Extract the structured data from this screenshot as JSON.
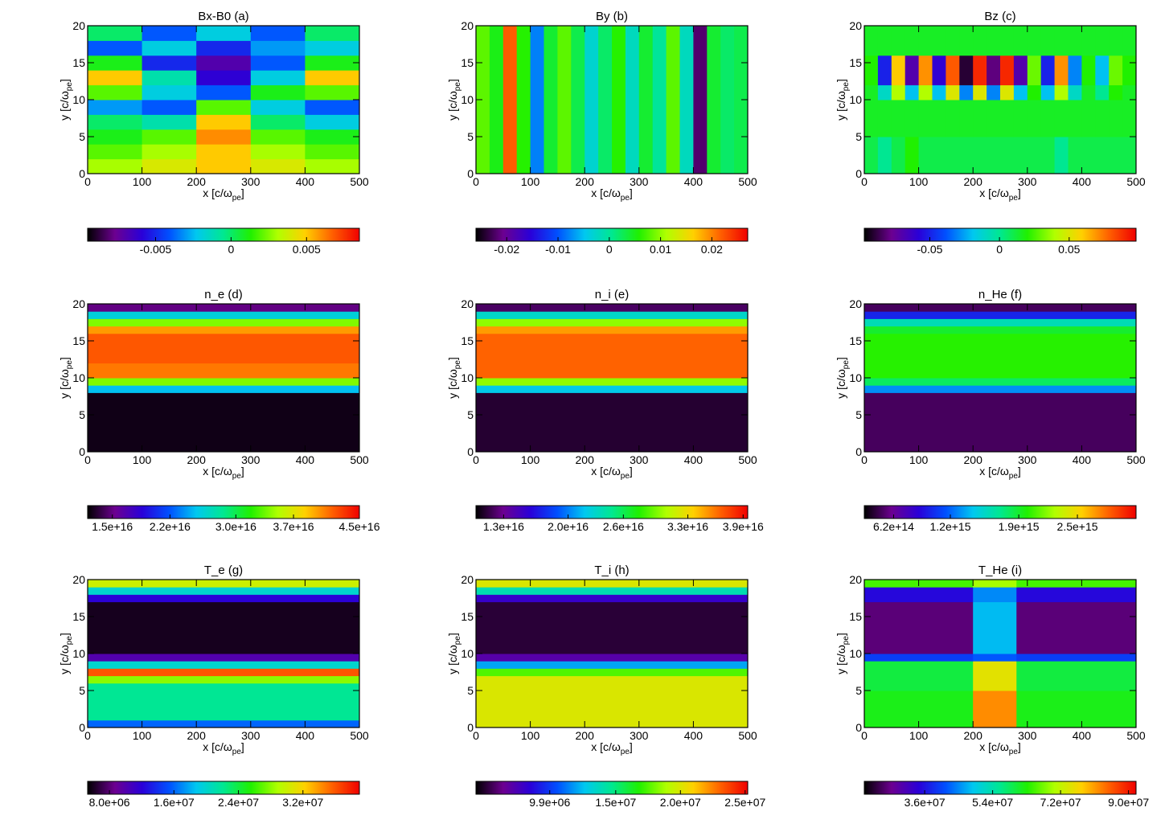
{
  "colormap": [
    "#000000",
    "#6c0090",
    "#2a00d8",
    "#0050ff",
    "#00c8f0",
    "#00e890",
    "#20f000",
    "#b0ff00",
    "#ffd000",
    "#ff6000",
    "#f00000"
  ],
  "chart_data": [
    {
      "type": "heatmap",
      "title": "Bx-B0 (a)",
      "x_label": [
        "x [c/ω",
        "pe",
        "]"
      ],
      "y_label": [
        "y [c/ω",
        "pe",
        "]"
      ],
      "xlim": [
        0,
        500
      ],
      "ylim": [
        0,
        20
      ],
      "xticks": [
        0,
        100,
        200,
        300,
        400,
        500
      ],
      "yticks": [
        0,
        5,
        10,
        15,
        20
      ],
      "x_edges": [
        0,
        100,
        200,
        300,
        400,
        500
      ],
      "y_edges": [
        0,
        2,
        4,
        6,
        8,
        10,
        12,
        14,
        16,
        18,
        20
      ],
      "z": [
        [
          0.003,
          0.004,
          0.005,
          0.004,
          0.003
        ],
        [
          0.002,
          0.003,
          0.005,
          0.003,
          0.002
        ],
        [
          0.001,
          0.002,
          0.006,
          0.002,
          0.001
        ],
        [
          0,
          -0.001,
          0.005,
          0,
          -0.002
        ],
        [
          -0.003,
          -0.004,
          0.002,
          -0.002,
          -0.004
        ],
        [
          0.002,
          -0.002,
          -0.004,
          0.001,
          0.002
        ],
        [
          0.005,
          -0.001,
          -0.006,
          -0.002,
          0.005
        ],
        [
          0.001,
          -0.005,
          -0.007,
          -0.004,
          0.001
        ],
        [
          -0.004,
          -0.002,
          -0.005,
          -0.003,
          -0.002
        ],
        [
          0,
          -0.004,
          -0.002,
          -0.004,
          0
        ]
      ],
      "clim": [
        -0.0095,
        0.0085
      ],
      "cticks": [
        -0.005,
        0,
        0.005
      ]
    },
    {
      "type": "heatmap",
      "title": "By (b)",
      "x_label": [
        "x [c/ω",
        "pe",
        "]"
      ],
      "y_label": [
        "y [c/ω",
        "pe",
        "]"
      ],
      "xlim": [
        0,
        500
      ],
      "ylim": [
        0,
        20
      ],
      "xticks": [
        0,
        100,
        200,
        300,
        400,
        500
      ],
      "yticks": [
        0,
        5,
        10,
        15,
        20
      ],
      "x_edges": [
        0,
        25,
        50,
        75,
        100,
        125,
        150,
        175,
        200,
        225,
        250,
        275,
        300,
        325,
        350,
        375,
        400,
        425,
        450,
        475,
        500
      ],
      "y_edges": [
        0,
        20
      ],
      "z": [
        [
          0.008,
          0.005,
          0.022,
          0.006,
          -0.008,
          0.004,
          0.008,
          0.003,
          -0.003,
          0.002,
          0.006,
          -0.002,
          0.004,
          0,
          0.008,
          -0.002,
          -0.022,
          0.004,
          0.002,
          0.003
        ]
      ],
      "clim": [
        -0.026,
        0.027
      ],
      "cticks": [
        -0.02,
        -0.01,
        0,
        0.01,
        0.02
      ]
    },
    {
      "type": "heatmap",
      "title": "Bz (c)",
      "x_label": [
        "x [c/ω",
        "pe",
        "]"
      ],
      "y_label": [
        "y [c/ω",
        "pe",
        "]"
      ],
      "xlim": [
        0,
        500
      ],
      "ylim": [
        0,
        20
      ],
      "xticks": [
        0,
        100,
        200,
        300,
        400,
        500
      ],
      "yticks": [
        0,
        5,
        10,
        15,
        20
      ],
      "x_edges": [
        0,
        25,
        50,
        75,
        100,
        125,
        150,
        175,
        200,
        225,
        250,
        275,
        300,
        325,
        350,
        375,
        400,
        425,
        450,
        475,
        500
      ],
      "y_edges": [
        0,
        5,
        10,
        12,
        16,
        20
      ],
      "z": [
        [
          0.01,
          0,
          0.01,
          0.02,
          0.01,
          0.01,
          0.01,
          0.01,
          0.01,
          0.01,
          0.01,
          0.01,
          0.01,
          0.01,
          0,
          0.01,
          0.01,
          0.01,
          0.01,
          0.01
        ],
        [
          0.015,
          0.015,
          0.015,
          0.015,
          0.015,
          0.015,
          0.015,
          0.015,
          0.015,
          0.015,
          0.015,
          0.015,
          0.015,
          0.015,
          0.015,
          0.015,
          0.015,
          0.015,
          0.015,
          0.015
        ],
        [
          0.015,
          -0.01,
          0.04,
          -0.02,
          0.04,
          -0.02,
          0.05,
          -0.03,
          0.05,
          -0.03,
          0.05,
          -0.02,
          0.02,
          -0.02,
          0.04,
          -0.01,
          0.015,
          0,
          0.02,
          0.015
        ],
        [
          0.02,
          -0.05,
          0.06,
          -0.07,
          0.07,
          -0.06,
          0.08,
          -0.09,
          0.09,
          -0.08,
          0.09,
          -0.07,
          0.03,
          -0.05,
          0.07,
          -0.03,
          0.02,
          -0.02,
          0.03,
          0.02
        ],
        [
          0.015,
          0.015,
          0.015,
          0.015,
          0.015,
          0.015,
          0.015,
          0.015,
          0.015,
          0.015,
          0.015,
          0.015,
          0.015,
          0.015,
          0.015,
          0.015,
          0.015,
          0.015,
          0.015,
          0.015
        ]
      ],
      "clim": [
        -0.097,
        0.098
      ],
      "cticks": [
        -0.05,
        0,
        0.05
      ]
    },
    {
      "type": "heatmap",
      "title": "n_e (d)",
      "x_label": [
        "x [c/ω",
        "pe",
        "]"
      ],
      "y_label": [
        "y [c/ω",
        "pe",
        "]"
      ],
      "xlim": [
        0,
        500
      ],
      "ylim": [
        0,
        20
      ],
      "xticks": [
        0,
        100,
        200,
        300,
        400,
        500
      ],
      "yticks": [
        0,
        5,
        10,
        15,
        20
      ],
      "x_edges": [
        0,
        500
      ],
      "y_edges": [
        0,
        8,
        9,
        10,
        12,
        16,
        17,
        18,
        19,
        20
      ],
      "z": [
        [
          1.25e+16
        ],
        [
          2.5e+16
        ],
        [
          3.4e+16
        ],
        [
          4.1e+16
        ],
        [
          4.2e+16
        ],
        [
          4e+16
        ],
        [
          3.4e+16
        ],
        [
          2.6e+16
        ],
        [
          1.5e+16
        ]
      ],
      "clim": [
        1.2e+16,
        4.5e+16
      ],
      "cticks": [
        {
          "value": 1.5e+16,
          "label": "1.5e+16"
        },
        {
          "value": 2.2e+16,
          "label": "2.2e+16"
        },
        {
          "value": 3e+16,
          "label": "3.0e+16"
        },
        {
          "value": 3.7e+16,
          "label": "3.7e+16"
        },
        {
          "value": 4.5e+16,
          "label": "4.5e+16"
        }
      ]
    },
    {
      "type": "heatmap",
      "title": "n_i (e)",
      "x_label": [
        "x [c/ω",
        "pe",
        "]"
      ],
      "y_label": [
        "y [c/ω",
        "pe",
        "]"
      ],
      "xlim": [
        0,
        500
      ],
      "ylim": [
        0,
        20
      ],
      "xticks": [
        0,
        100,
        200,
        300,
        400,
        500
      ],
      "yticks": [
        0,
        5,
        10,
        15,
        20
      ],
      "x_edges": [
        0,
        500
      ],
      "y_edges": [
        0,
        8,
        9,
        10,
        16,
        17,
        18,
        19,
        20
      ],
      "z": [
        [
          1.1e+16
        ],
        [
          2.2e+16
        ],
        [
          3e+16
        ],
        [
          3.65e+16
        ],
        [
          3.5e+16
        ],
        [
          3e+16
        ],
        [
          2.3e+16
        ],
        [
          1.2e+16
        ]
      ],
      "clim": [
        1e+16,
        3.95e+16
      ],
      "cticks": [
        {
          "value": 1.3e+16,
          "label": "1.3e+16"
        },
        {
          "value": 2e+16,
          "label": "2.0e+16"
        },
        {
          "value": 2.6e+16,
          "label": "2.6e+16"
        },
        {
          "value": 3.3e+16,
          "label": "3.3e+16"
        },
        {
          "value": 3.9e+16,
          "label": "3.9e+16"
        }
      ]
    },
    {
      "type": "heatmap",
      "title": "n_He (f)",
      "x_label": [
        "x [c/ω",
        "pe",
        "]"
      ],
      "y_label": [
        "y [c/ω",
        "pe",
        "]"
      ],
      "xlim": [
        0,
        500
      ],
      "ylim": [
        0,
        20
      ],
      "xticks": [
        0,
        100,
        200,
        300,
        400,
        500
      ],
      "yticks": [
        0,
        5,
        10,
        15,
        20
      ],
      "x_edges": [
        0,
        500
      ],
      "y_edges": [
        0,
        8,
        9,
        10,
        16,
        17,
        18,
        19,
        20
      ],
      "z": [
        [
          500000000000000.0
        ],
        [
          1300000000000000.0
        ],
        [
          1800000000000000.0
        ],
        [
          2000000000000000.0
        ],
        [
          1900000000000000.0
        ],
        [
          1600000000000000.0
        ],
        [
          1000000000000000.0
        ],
        [
          500000000000000.0
        ]
      ],
      "clim": [
        320000000000000.0,
        3100000000000000.0
      ],
      "cticks": [
        {
          "value": 620000000000000.0,
          "label": "6.2e+14"
        },
        {
          "value": 1200000000000000.0,
          "label": "1.2e+15"
        },
        {
          "value": 1900000000000000.0,
          "label": "1.9e+15"
        },
        {
          "value": 2500000000000000.0,
          "label": "2.5e+15"
        }
      ]
    },
    {
      "type": "heatmap",
      "title": "T_e (g)",
      "x_label": [
        "x [c/ω",
        "pe",
        "]"
      ],
      "y_label": [
        "y [c/ω",
        "pe",
        "]"
      ],
      "xlim": [
        0,
        500
      ],
      "ylim": [
        0,
        20
      ],
      "xticks": [
        0,
        100,
        200,
        300,
        400,
        500
      ],
      "yticks": [
        0,
        5,
        10,
        15,
        20
      ],
      "x_edges": [
        0,
        500
      ],
      "y_edges": [
        0,
        1,
        6,
        7,
        8,
        9,
        10,
        17,
        18,
        19,
        20
      ],
      "z": [
        [
          16000000.0
        ],
        [
          22000000.0
        ],
        [
          28000000.0
        ],
        [
          36000000.0
        ],
        [
          20000000.0
        ],
        [
          10000000.0
        ],
        [
          6000000.0
        ],
        [
          12000000.0
        ],
        [
          20000000.0
        ],
        [
          30000000.0
        ]
      ],
      "clim": [
        5300000.0,
        39000000.0
      ],
      "cticks": [
        {
          "value": 8000000.0,
          "label": "8.0e+06"
        },
        {
          "value": 16000000.0,
          "label": "1.6e+07"
        },
        {
          "value": 24000000.0,
          "label": "2.4e+07"
        },
        {
          "value": 32000000.0,
          "label": "3.2e+07"
        }
      ]
    },
    {
      "type": "heatmap",
      "title": "T_i (h)",
      "x_label": [
        "x [c/ω",
        "pe",
        "]"
      ],
      "y_label": [
        "y [c/ω",
        "pe",
        "]"
      ],
      "xlim": [
        0,
        500
      ],
      "ylim": [
        0,
        20
      ],
      "xticks": [
        0,
        100,
        200,
        300,
        400,
        500
      ],
      "yticks": [
        0,
        5,
        10,
        15,
        20
      ],
      "x_edges": [
        0,
        500
      ],
      "y_edges": [
        0,
        7,
        8,
        9,
        10,
        17,
        18,
        19,
        20
      ],
      "z": [
        [
          20000000.0
        ],
        [
          17500000.0
        ],
        [
          12000000.0
        ],
        [
          7000000.0
        ],
        [
          5000000.0
        ],
        [
          8000000.0
        ],
        [
          14000000.0
        ],
        [
          20000000.0
        ]
      ],
      "clim": [
        4200000.0,
        25200000.0
      ],
      "cticks": [
        {
          "value": 9900000.0,
          "label": "9.9e+06"
        },
        {
          "value": 15000000.0,
          "label": "1.5e+07"
        },
        {
          "value": 20000000.0,
          "label": "2.0e+07"
        },
        {
          "value": 25000000.0,
          "label": "2.5e+07"
        }
      ]
    },
    {
      "type": "heatmap",
      "title": "T_He (i)",
      "x_label": [
        "x [c/ω",
        "pe",
        "]"
      ],
      "y_label": [
        "y [c/ω",
        "pe",
        "]"
      ],
      "xlim": [
        0,
        500
      ],
      "ylim": [
        0,
        20
      ],
      "xticks": [
        0,
        100,
        200,
        300,
        400,
        500
      ],
      "yticks": [
        0,
        5,
        10,
        15,
        20
      ],
      "x_edges": [
        0,
        200,
        280,
        500
      ],
      "y_edges": [
        0,
        5,
        9,
        10,
        17,
        19,
        20
      ],
      "z": [
        [
          62000000.0,
          82000000.0,
          62000000.0
        ],
        [
          60000000.0,
          75000000.0,
          60000000.0
        ],
        [
          40000000.0,
          42000000.0,
          40000000.0
        ],
        [
          26000000.0,
          48000000.0,
          26000000.0
        ],
        [
          35000000.0,
          45000000.0,
          35000000.0
        ],
        [
          65000000.0,
          70000000.0,
          65000000.0
        ]
      ],
      "clim": [
        20000000.0,
        92000000.0
      ],
      "cticks": [
        {
          "value": 36000000.0,
          "label": "3.6e+07"
        },
        {
          "value": 54000000.0,
          "label": "5.4e+07"
        },
        {
          "value": 72000000.0,
          "label": "7.2e+07"
        },
        {
          "value": 90000000.0,
          "label": "9.0e+07"
        }
      ]
    }
  ]
}
